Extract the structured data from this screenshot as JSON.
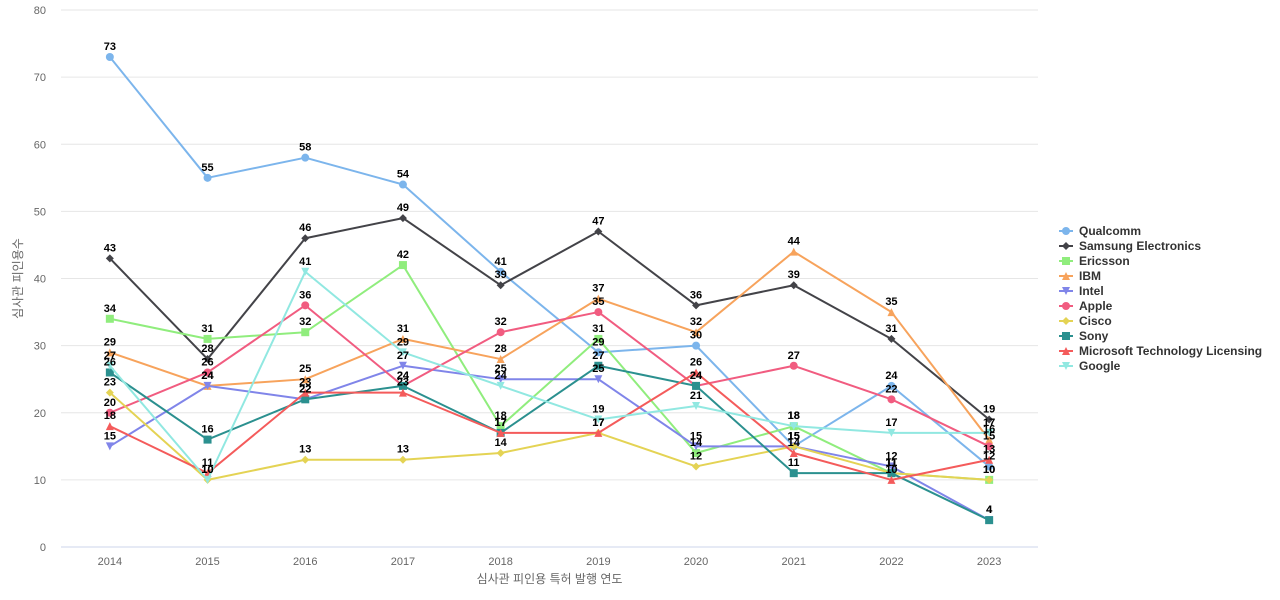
{
  "chart_data": {
    "type": "line",
    "title": "",
    "xlabel": "심사관 피인용 특허 발행 연도",
    "ylabel": "심사관 피인용수",
    "x": [
      "2014",
      "2015",
      "2016",
      "2017",
      "2018",
      "2019",
      "2020",
      "2021",
      "2022",
      "2023"
    ],
    "ylim": [
      0,
      80
    ],
    "yticks": [
      0,
      10,
      20,
      30,
      40,
      50,
      60,
      70,
      80
    ],
    "grid": true,
    "legend_position": "right",
    "series": [
      {
        "name": "Qualcomm",
        "color": "#7cb5ec",
        "marker": "circle",
        "values": [
          73,
          55,
          58,
          54,
          41,
          29,
          30,
          15,
          24,
          12
        ]
      },
      {
        "name": "Samsung Electronics",
        "color": "#434348",
        "marker": "diamond",
        "values": [
          43,
          28,
          46,
          49,
          39,
          47,
          36,
          39,
          31,
          19
        ]
      },
      {
        "name": "Ericsson",
        "color": "#90ed7d",
        "marker": "square",
        "values": [
          34,
          31,
          32,
          42,
          18,
          31,
          14,
          18,
          11,
          10
        ]
      },
      {
        "name": "IBM",
        "color": "#f7a35c",
        "marker": "triangle",
        "values": [
          29,
          24,
          25,
          31,
          28,
          37,
          32,
          44,
          35,
          16
        ]
      },
      {
        "name": "Intel",
        "color": "#8085e9",
        "marker": "triangle-down",
        "values": [
          15,
          24,
          22,
          27,
          25,
          25,
          15,
          15,
          12,
          4
        ]
      },
      {
        "name": "Apple",
        "color": "#f15c80",
        "marker": "circle",
        "values": [
          20,
          26,
          36,
          24,
          32,
          35,
          24,
          27,
          22,
          15
        ]
      },
      {
        "name": "Cisco",
        "color": "#e4d354",
        "marker": "diamond",
        "values": [
          23,
          10,
          13,
          13,
          14,
          17,
          12,
          15,
          11,
          10
        ]
      },
      {
        "name": "Sony",
        "color": "#2b908f",
        "marker": "square",
        "values": [
          26,
          16,
          22,
          24,
          17,
          27,
          24,
          11,
          11,
          4
        ]
      },
      {
        "name": "Microsoft Technology Licensing",
        "color": "#f45b5b",
        "marker": "triangle",
        "values": [
          18,
          11,
          23,
          23,
          17,
          17,
          26,
          14,
          10,
          13
        ]
      },
      {
        "name": "Google",
        "color": "#91e8e1",
        "marker": "triangle-down",
        "values": [
          27,
          10,
          41,
          29,
          24,
          19,
          21,
          18,
          17,
          17
        ]
      }
    ]
  }
}
